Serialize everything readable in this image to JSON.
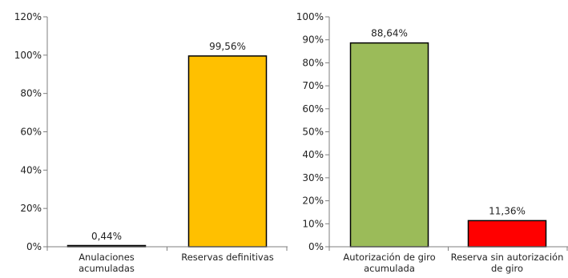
{
  "chart_data": [
    {
      "type": "bar",
      "categories": [
        [
          "Anulaciones",
          "acumuladas"
        ],
        [
          "Reservas definitivas"
        ]
      ],
      "values": [
        0.44,
        99.56
      ],
      "value_labels": [
        "0,44%",
        "99,56%"
      ],
      "bar_colors": [
        "#000000",
        "#FFC000"
      ],
      "ylim": [
        0,
        120
      ],
      "yticks": [
        0,
        20,
        40,
        60,
        80,
        100,
        120
      ],
      "ytick_labels": [
        "0%",
        "20%",
        "40%",
        "60%",
        "80%",
        "100%",
        "120%"
      ],
      "grid": false,
      "title": "",
      "xlabel": "",
      "ylabel": ""
    },
    {
      "type": "bar",
      "categories": [
        [
          "Autorización de giro",
          "acumulada"
        ],
        [
          "Reserva sin autorización",
          "de giro"
        ]
      ],
      "values": [
        88.64,
        11.36
      ],
      "value_labels": [
        "88,64%",
        "11,36%"
      ],
      "bar_colors": [
        "#9BBB59",
        "#FF0000"
      ],
      "ylim": [
        0,
        100
      ],
      "yticks": [
        0,
        10,
        20,
        30,
        40,
        50,
        60,
        70,
        80,
        90,
        100
      ],
      "ytick_labels": [
        "0%",
        "10%",
        "20%",
        "30%",
        "40%",
        "50%",
        "60%",
        "70%",
        "80%",
        "90%",
        "100%"
      ],
      "grid": false,
      "title": "",
      "xlabel": "",
      "ylabel": ""
    }
  ]
}
